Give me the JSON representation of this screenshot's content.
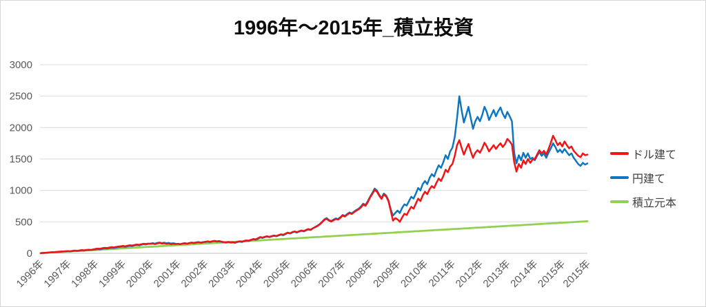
{
  "title": "1996年～2015年_積立投資",
  "chart_data": {
    "type": "line",
    "title": "1996年～2015年_積立投資",
    "x_unit": "month",
    "x_start": "1996-01",
    "x_end": "2015-12",
    "xlabel": "",
    "ylabel": "",
    "ylim": [
      0,
      3000
    ],
    "y_ticks": [
      0,
      500,
      1000,
      1500,
      2000,
      2500,
      3000
    ],
    "grid": "horizontal",
    "gridline_color": "#d9d9d9",
    "axis_line_color": "#bfbfbf",
    "tick_label_color": "#595959",
    "legend_position": "right",
    "x_tick_labels": [
      "1996年",
      "1997年",
      "1998年",
      "1999年",
      "2000年",
      "2001年",
      "2002年",
      "2003年",
      "2004年",
      "2005年",
      "2006年",
      "2007年",
      "2008年",
      "2009年",
      "2010年",
      "2011年",
      "2012年",
      "2013年",
      "2014年",
      "2015年",
      "2015年"
    ],
    "x_tick_month_indices": [
      0,
      12,
      24,
      36,
      48,
      60,
      72,
      84,
      96,
      108,
      120,
      132,
      144,
      156,
      168,
      180,
      192,
      204,
      216,
      228,
      239
    ],
    "series": [
      {
        "name": "ドル建て",
        "key": "dollar",
        "color": "#f01414",
        "values": [
          2,
          6,
          9,
          12,
          15,
          18,
          20,
          23,
          26,
          29,
          31,
          34,
          36,
          33,
          40,
          44,
          41,
          47,
          51,
          48,
          54,
          58,
          55,
          62,
          70,
          76,
          72,
          82,
          88,
          84,
          92,
          98,
          94,
          102,
          108,
          112,
          118,
          112,
          122,
          128,
          124,
          134,
          140,
          136,
          144,
          152,
          148,
          154,
          150,
          156,
          146,
          158,
          164,
          154,
          160,
          150,
          156,
          146,
          152,
          148,
          152,
          146,
          154,
          160,
          152,
          162,
          168,
          162,
          170,
          176,
          168,
          174,
          184,
          190,
          182,
          192,
          198,
          190,
          196,
          186,
          180,
          176,
          182,
          176,
          178,
          172,
          184,
          192,
          186,
          198,
          206,
          202,
          216,
          228,
          222,
          240,
          258,
          250,
          264,
          272,
          262,
          274,
          284,
          276,
          290,
          302,
          294,
          312,
          330,
          320,
          338,
          348,
          336,
          352,
          364,
          354,
          372,
          386,
          376,
          400,
          415,
          435,
          460,
          495,
          530,
          550,
          520,
          505,
          525,
          545,
          535,
          565,
          600,
          585,
          615,
          640,
          625,
          655,
          680,
          700,
          730,
          775,
          755,
          815,
          890,
          945,
          1010,
          980,
          915,
          865,
          935,
          905,
          835,
          680,
          520,
          560,
          540,
          500,
          570,
          630,
          610,
          680,
          740,
          710,
          790,
          870,
          830,
          920,
          980,
          940,
          1020,
          1070,
          1040,
          1120,
          1190,
          1150,
          1230,
          1330,
          1290,
          1380,
          1420,
          1550,
          1720,
          1800,
          1680,
          1570,
          1660,
          1740,
          1620,
          1520,
          1600,
          1640,
          1600,
          1670,
          1760,
          1700,
          1620,
          1670,
          1720,
          1660,
          1710,
          1750,
          1690,
          1740,
          1820,
          1780,
          1730,
          1450,
          1300,
          1420,
          1360,
          1480,
          1420,
          1500,
          1440,
          1490,
          1500,
          1570,
          1640,
          1590,
          1630,
          1570,
          1660,
          1760,
          1870,
          1800,
          1720,
          1760,
          1700,
          1780,
          1720,
          1670,
          1700,
          1630,
          1590,
          1550,
          1530,
          1590,
          1560,
          1570
        ]
      },
      {
        "name": "円建て",
        "key": "yen",
        "color": "#0e76c0",
        "values": [
          2,
          5,
          8,
          10,
          13,
          16,
          18,
          20,
          23,
          26,
          28,
          31,
          33,
          30,
          36,
          40,
          37,
          43,
          47,
          44,
          50,
          54,
          51,
          57,
          60,
          66,
          62,
          72,
          78,
          74,
          82,
          88,
          84,
          92,
          98,
          104,
          108,
          102,
          112,
          118,
          114,
          124,
          130,
          126,
          136,
          144,
          140,
          150,
          156,
          162,
          152,
          166,
          172,
          162,
          170,
          160,
          165,
          155,
          160,
          152,
          150,
          144,
          155,
          162,
          154,
          164,
          172,
          166,
          174,
          180,
          172,
          180,
          180,
          186,
          178,
          188,
          194,
          186,
          192,
          182,
          175,
          170,
          176,
          170,
          172,
          168,
          178,
          186,
          180,
          192,
          200,
          196,
          210,
          222,
          216,
          232,
          252,
          244,
          258,
          266,
          256,
          268,
          278,
          270,
          284,
          296,
          288,
          305,
          325,
          315,
          332,
          342,
          330,
          346,
          358,
          348,
          365,
          380,
          370,
          395,
          420,
          440,
          465,
          500,
          540,
          560,
          530,
          515,
          535,
          555,
          545,
          575,
          610,
          595,
          625,
          650,
          635,
          665,
          690,
          710,
          745,
          790,
          770,
          830,
          900,
          960,
          1030,
          1000,
          930,
          880,
          950,
          920,
          850,
          700,
          600,
          640,
          680,
          640,
          720,
          780,
          760,
          830,
          900,
          870,
          950,
          1040,
          1000,
          1100,
          1150,
          1100,
          1200,
          1260,
          1220,
          1320,
          1400,
          1360,
          1450,
          1560,
          1500,
          1620,
          1680,
          1850,
          2150,
          2500,
          2280,
          2080,
          2200,
          2330,
          2150,
          1980,
          2100,
          2170,
          2100,
          2200,
          2330,
          2250,
          2120,
          2200,
          2280,
          2180,
          2260,
          2320,
          2220,
          2150,
          2250,
          2180,
          2100,
          1600,
          1430,
          1560,
          1480,
          1600,
          1520,
          1590,
          1500,
          1520,
          1480,
          1550,
          1610,
          1550,
          1590,
          1520,
          1600,
          1670,
          1750,
          1690,
          1610,
          1650,
          1600,
          1660,
          1610,
          1560,
          1590,
          1520,
          1470,
          1420,
          1390,
          1440,
          1410,
          1430
        ]
      },
      {
        "name": "積立元本",
        "key": "principal",
        "color": "#92d050",
        "values": [
          2,
          4,
          6,
          8,
          11,
          13,
          15,
          17,
          19,
          21,
          23,
          26,
          28,
          30,
          32,
          34,
          36,
          38,
          40,
          42,
          45,
          47,
          49,
          51,
          53,
          55,
          57,
          60,
          62,
          64,
          66,
          68,
          70,
          72,
          74,
          77,
          79,
          81,
          83,
          85,
          87,
          89,
          91,
          93,
          96,
          98,
          100,
          102,
          104,
          106,
          108,
          110,
          113,
          115,
          117,
          119,
          121,
          123,
          125,
          128,
          130,
          132,
          134,
          136,
          138,
          140,
          142,
          144,
          147,
          149,
          151,
          153,
          155,
          157,
          159,
          161,
          164,
          166,
          168,
          170,
          172,
          174,
          176,
          179,
          181,
          183,
          185,
          187,
          189,
          191,
          193,
          195,
          198,
          200,
          202,
          204,
          206,
          208,
          210,
          212,
          215,
          217,
          219,
          221,
          223,
          225,
          227,
          230,
          232,
          234,
          236,
          238,
          240,
          242,
          244,
          246,
          249,
          251,
          253,
          255,
          257,
          259,
          261,
          263,
          266,
          268,
          270,
          272,
          274,
          276,
          278,
          281,
          283,
          285,
          287,
          289,
          291,
          293,
          295,
          297,
          300,
          302,
          304,
          306,
          308,
          310,
          312,
          314,
          317,
          319,
          321,
          323,
          325,
          327,
          329,
          332,
          334,
          336,
          338,
          340,
          342,
          344,
          346,
          348,
          351,
          353,
          355,
          357,
          359,
          361,
          363,
          365,
          368,
          370,
          372,
          374,
          376,
          378,
          380,
          383,
          385,
          387,
          389,
          391,
          393,
          395,
          397,
          399,
          402,
          404,
          406,
          408,
          410,
          412,
          414,
          416,
          419,
          421,
          423,
          425,
          427,
          429,
          431,
          434,
          436,
          438,
          440,
          442,
          444,
          446,
          448,
          450,
          453,
          455,
          457,
          459,
          461,
          463,
          465,
          467,
          470,
          472,
          474,
          476,
          478,
          480,
          482,
          485,
          487,
          489,
          491,
          493,
          495,
          497,
          499,
          501,
          504,
          506,
          508,
          510
        ]
      }
    ]
  },
  "legend": {
    "items": [
      {
        "label": "ドル建て"
      },
      {
        "label": "円建て"
      },
      {
        "label": "積立元本"
      }
    ]
  }
}
